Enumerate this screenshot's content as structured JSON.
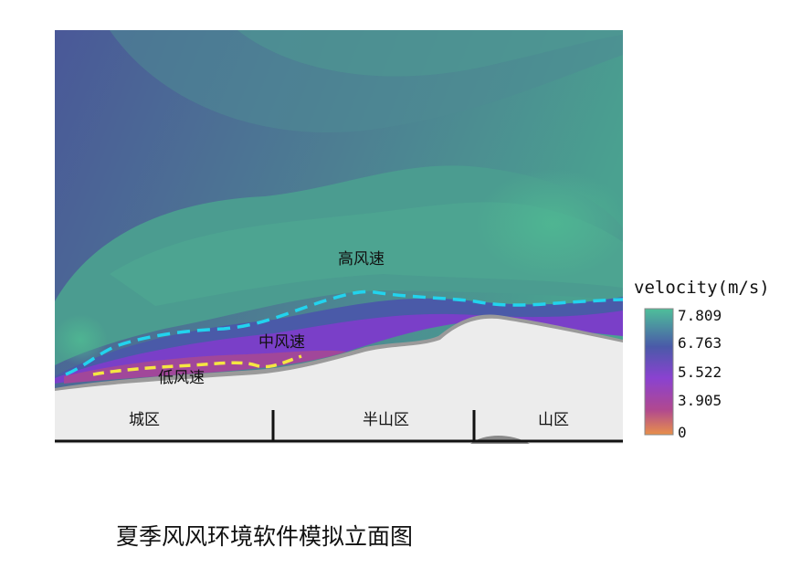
{
  "zones": {
    "high": "高风速",
    "mid": "中风速",
    "low": "低风速"
  },
  "regions": {
    "city": "城区",
    "half_mountain": "半山区",
    "mountain": "山区"
  },
  "legend": {
    "title": "velocity(m/s)",
    "ticks": [
      "7.809",
      "6.763",
      "5.522",
      "3.905",
      "0"
    ],
    "colors": [
      "#4ebf9a",
      "#4a5aa8",
      "#8a42d0",
      "#b04890",
      "#e8904a"
    ]
  },
  "caption": "夏季风风环境软件模拟立面图",
  "colors": {
    "high_wind_line": "#22d3ee",
    "low_wind_line": "#f5e642",
    "terrain": "#ececec"
  }
}
